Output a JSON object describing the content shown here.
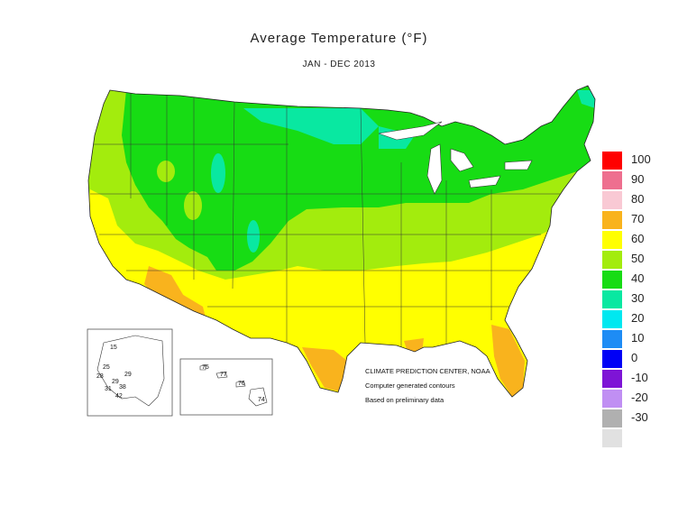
{
  "title": "Average Temperature (°F)",
  "subtitle": "JAN - DEC 2013",
  "credits": {
    "line1": "CLIMATE PREDICTION CENTER, NOAA",
    "line2": "Computer generated contours",
    "line3": "Based on preliminary data"
  },
  "legend": [
    {
      "label": "100",
      "color": "#ff0000"
    },
    {
      "label": "90",
      "color": "#ee6f8f"
    },
    {
      "label": "80",
      "color": "#f9c9d4"
    },
    {
      "label": "70",
      "color": "#f9b31d"
    },
    {
      "label": "60",
      "color": "#ffff00"
    },
    {
      "label": "50",
      "color": "#a3ec0d"
    },
    {
      "label": "40",
      "color": "#17dc14"
    },
    {
      "label": "30",
      "color": "#09e8a1"
    },
    {
      "label": "20",
      "color": "#00e8f0"
    },
    {
      "label": "10",
      "color": "#1e8cf5"
    },
    {
      "label": "0",
      "color": "#0000f6"
    },
    {
      "label": "-10",
      "color": "#7e14d6"
    },
    {
      "label": "-20",
      "color": "#c08ff3"
    },
    {
      "label": "-30",
      "color": "#b0b0b0"
    },
    {
      "label": "",
      "color": "#e1e1e1"
    }
  ],
  "alaska": [
    "15",
    "25",
    "28",
    "29",
    "29",
    "31",
    "38",
    "42"
  ],
  "hawaii": [
    "75",
    "77",
    "76",
    "74"
  ]
}
